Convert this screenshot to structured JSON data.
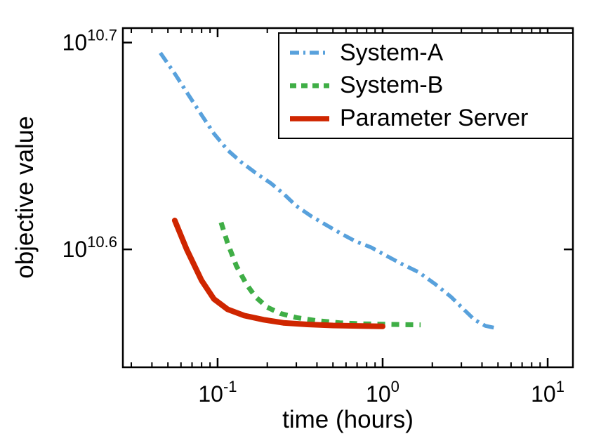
{
  "figure": {
    "background": "#ffffff",
    "axis_color": "#000000"
  },
  "chart_data": {
    "type": "line",
    "title": "",
    "xlabel": "time (hours)",
    "ylabel": "objective value",
    "x_scale": "log10",
    "y_scale": "log10",
    "xlim_log10": [
      -1.574,
      1.153
    ],
    "ylim_log10": [
      10.543,
      10.707
    ],
    "grid": false,
    "legend_position": "top-right-inside",
    "x_ticks": [
      {
        "value": 0.1,
        "base": "10",
        "exponent": "-1"
      },
      {
        "value": 1,
        "base": "10",
        "exponent": "0"
      },
      {
        "value": 10,
        "base": "10",
        "exponent": "1"
      }
    ],
    "y_ticks": [
      {
        "log10_value": 10.7,
        "base": "10",
        "exponent": "10.7"
      },
      {
        "log10_value": 10.6,
        "base": "10",
        "exponent": "10.6"
      }
    ],
    "series": [
      {
        "name": "System-A",
        "color": "#58a1dc",
        "line_style": "dash-dot",
        "line_width": 5.5,
        "x_hours": [
          0.045,
          0.055,
          0.065,
          0.08,
          0.095,
          0.115,
          0.14,
          0.17,
          0.21,
          0.25,
          0.3,
          0.37,
          0.45,
          0.55,
          0.68,
          0.85,
          1.05,
          1.3,
          1.65,
          2.1,
          2.6,
          3.1,
          3.6,
          4.2,
          4.8
        ],
        "log10_objective": [
          10.695,
          10.685,
          10.676,
          10.665,
          10.656,
          10.648,
          10.642,
          10.637,
          10.632,
          10.627,
          10.621,
          10.616,
          10.612,
          10.608,
          10.604,
          10.601,
          10.597,
          10.593,
          10.589,
          10.583,
          10.577,
          10.571,
          10.566,
          10.563,
          10.562
        ]
      },
      {
        "name": "System-B",
        "color": "#3fae46",
        "line_style": "dashed",
        "line_width": 7,
        "x_hours": [
          0.105,
          0.115,
          0.13,
          0.15,
          0.17,
          0.2,
          0.24,
          0.3,
          0.4,
          0.55,
          0.75,
          1.0,
          1.35,
          1.7
        ],
        "log10_objective": [
          10.613,
          10.603,
          10.592,
          10.583,
          10.577,
          10.572,
          10.569,
          10.567,
          10.5655,
          10.5645,
          10.564,
          10.5638,
          10.5636,
          10.5635
        ]
      },
      {
        "name": "Parameter Server",
        "color": "#cf2600",
        "line_style": "solid",
        "line_width": 8,
        "x_hours": [
          0.055,
          0.065,
          0.08,
          0.095,
          0.115,
          0.145,
          0.19,
          0.25,
          0.35,
          0.5,
          0.7,
          1.0
        ],
        "log10_objective": [
          10.614,
          10.6,
          10.585,
          10.576,
          10.571,
          10.568,
          10.566,
          10.5645,
          10.5637,
          10.5632,
          10.563,
          10.5628
        ]
      }
    ]
  }
}
